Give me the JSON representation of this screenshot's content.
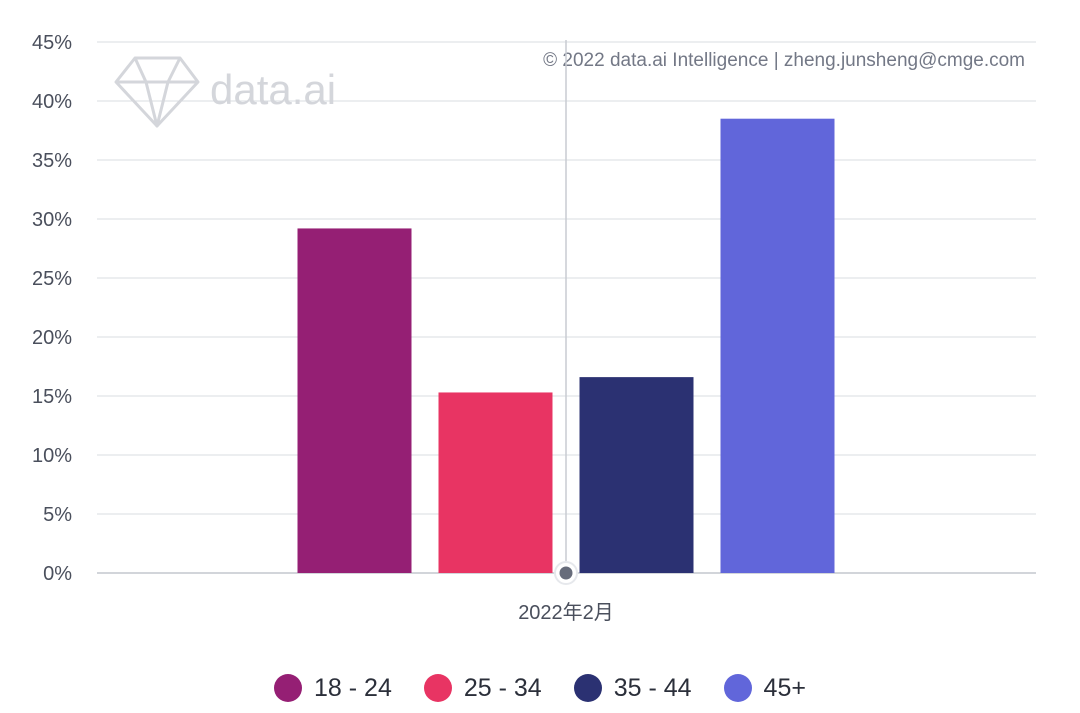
{
  "watermark": {
    "logo_text": "data.ai",
    "logo_icon": "diamond-icon",
    "copyright": "© 2022 data.ai Intelligence | zheng.junsheng@cmge.com"
  },
  "chart_data": {
    "type": "bar",
    "categories": [
      "2022年2月"
    ],
    "series": [
      {
        "name": "18 - 24",
        "color": "#951F74",
        "values": [
          29.2
        ]
      },
      {
        "name": "25 - 34",
        "color": "#E83463",
        "values": [
          15.3
        ]
      },
      {
        "name": "35 - 44",
        "color": "#2B3172",
        "values": [
          16.6
        ]
      },
      {
        "name": "45+",
        "color": "#6166DA",
        "values": [
          38.5
        ]
      }
    ],
    "yticks": [
      "0%",
      "5%",
      "10%",
      "15%",
      "20%",
      "25%",
      "30%",
      "35%",
      "40%",
      "45%"
    ],
    "ylim": [
      0,
      45
    ],
    "grid": true,
    "legend_position": "bottom-center"
  }
}
